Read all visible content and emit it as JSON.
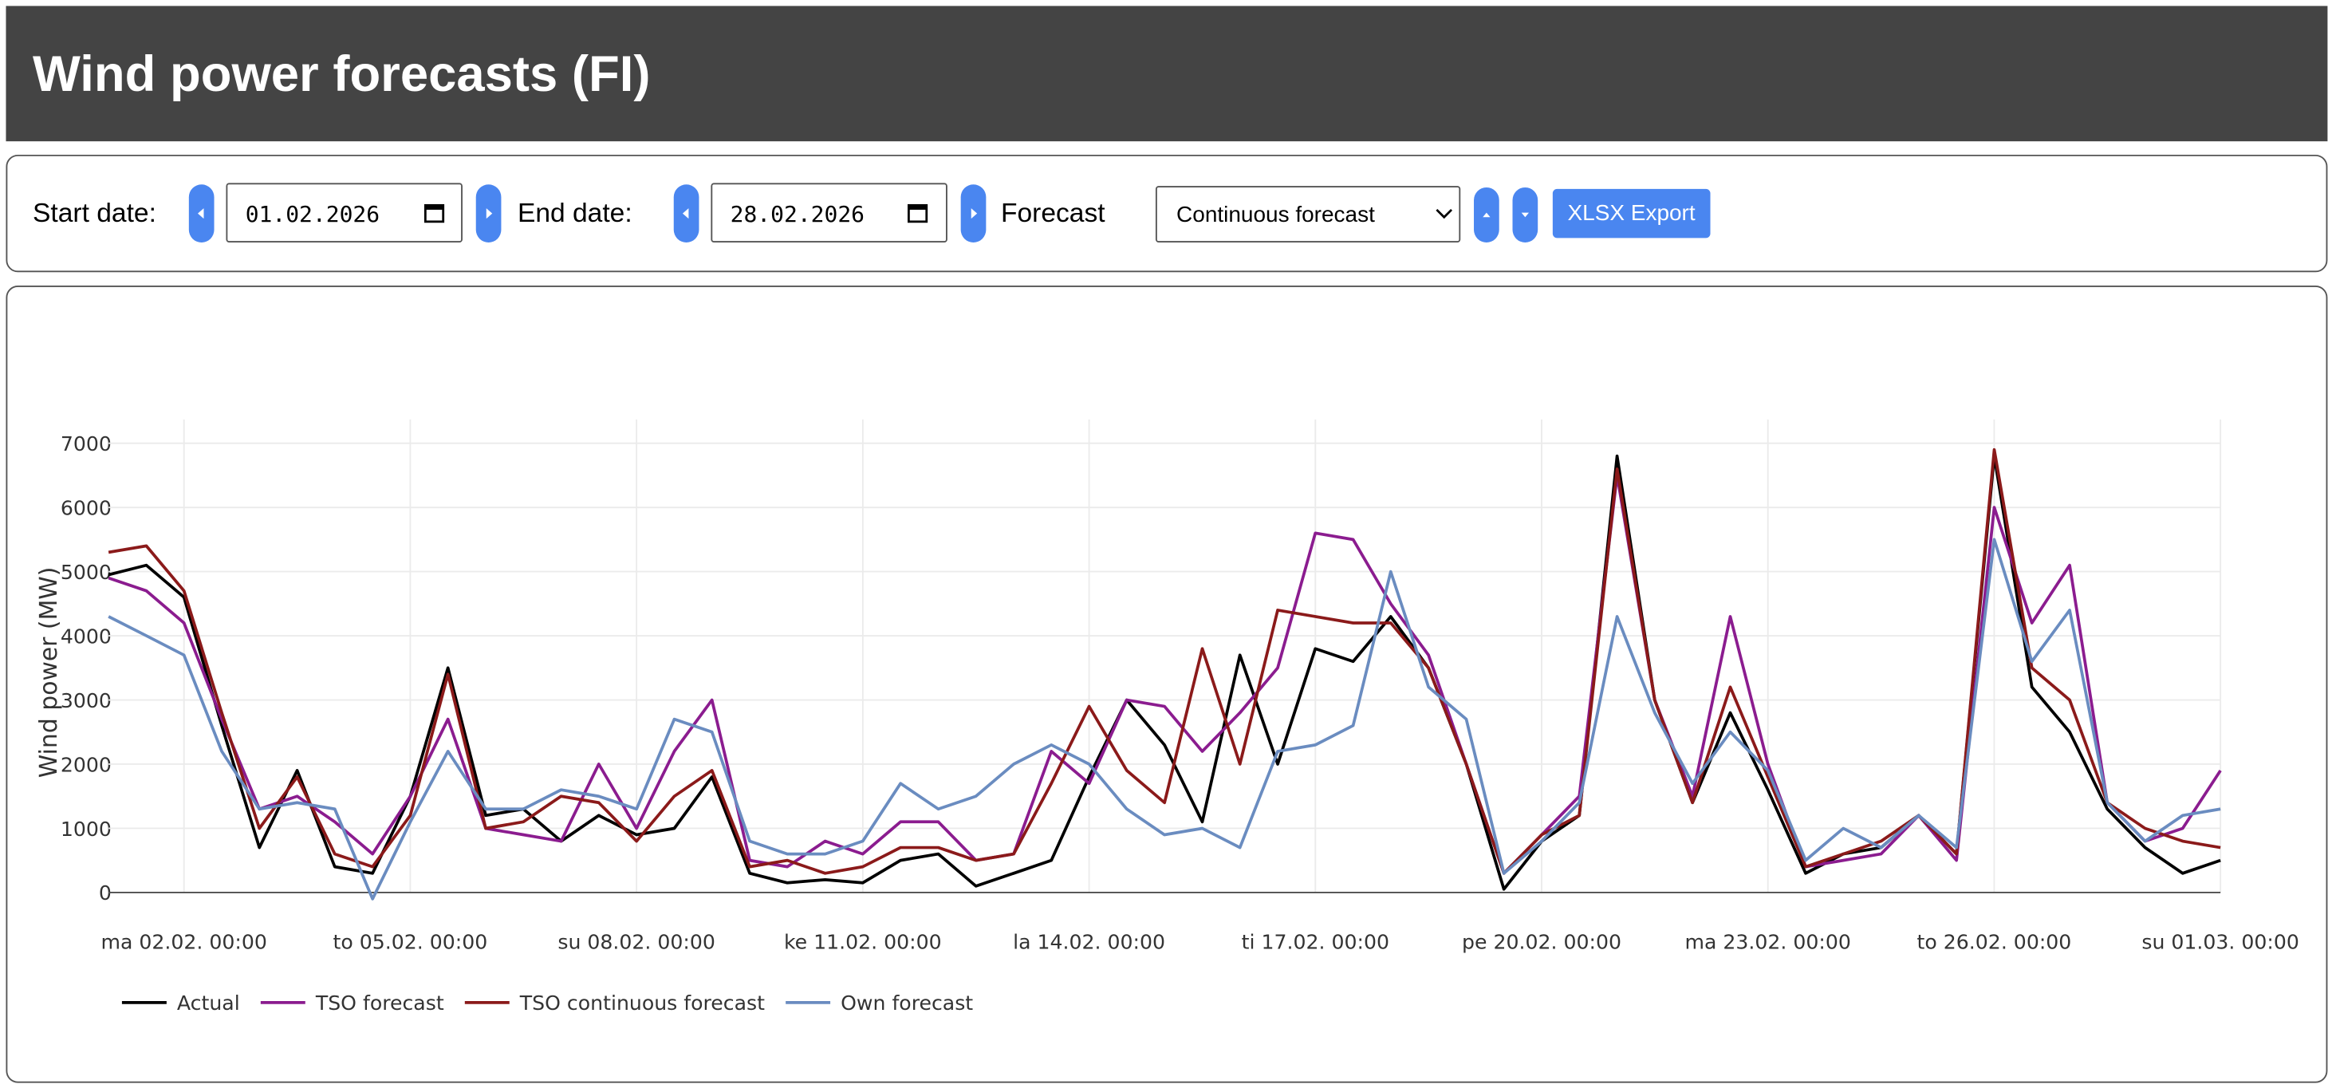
{
  "header": {
    "title": "Wind power forecasts (FI)"
  },
  "controls": {
    "start_label": "Start date:",
    "start_value": "01.02.2026",
    "end_label": "End date:",
    "end_value": "28.02.2026",
    "forecast_label": "Forecast",
    "forecast_value": "Continuous forecast",
    "export_button": "XLSX Export"
  },
  "chart_data": {
    "type": "line",
    "y_label": "Wind power (MW)",
    "x": [
      "01.02. 00:00",
      "01.02. 12:00",
      "02.02. 00:00",
      "02.02. 12:00",
      "03.02. 00:00",
      "03.02. 12:00",
      "04.02. 00:00",
      "04.02. 12:00",
      "05.02. 00:00",
      "05.02. 12:00",
      "06.02. 00:00",
      "06.02. 12:00",
      "07.02. 00:00",
      "07.02. 12:00",
      "08.02. 00:00",
      "08.02. 12:00",
      "09.02. 00:00",
      "09.02. 12:00",
      "10.02. 00:00",
      "10.02. 12:00",
      "11.02. 00:00",
      "11.02. 12:00",
      "12.02. 00:00",
      "12.02. 12:00",
      "13.02. 00:00",
      "13.02. 12:00",
      "14.02. 00:00",
      "14.02. 12:00",
      "15.02. 00:00",
      "15.02. 12:00",
      "16.02. 00:00",
      "16.02. 12:00",
      "17.02. 00:00",
      "17.02. 12:00",
      "18.02. 00:00",
      "18.02. 12:00",
      "19.02. 00:00",
      "19.02. 12:00",
      "20.02. 00:00",
      "20.02. 12:00",
      "21.02. 00:00",
      "21.02. 12:00",
      "22.02. 00:00",
      "22.02. 12:00",
      "23.02. 00:00",
      "23.02. 12:00",
      "24.02. 00:00",
      "24.02. 12:00",
      "25.02. 00:00",
      "25.02. 12:00",
      "26.02. 00:00",
      "26.02. 12:00",
      "27.02. 00:00",
      "27.02. 12:00",
      "28.02. 00:00",
      "28.02. 12:00",
      "01.03. 00:00"
    ],
    "xlim": [
      "01.02. 00:00",
      "01.03. 00:00"
    ],
    "xticks": [
      {
        "value": "02.02. 00:00",
        "label": "ma 02.02. 00:00"
      },
      {
        "value": "05.02. 00:00",
        "label": "to 05.02. 00:00"
      },
      {
        "value": "08.02. 00:00",
        "label": "su 08.02. 00:00"
      },
      {
        "value": "11.02. 00:00",
        "label": "ke 11.02. 00:00"
      },
      {
        "value": "14.02. 00:00",
        "label": "la 14.02. 00:00"
      },
      {
        "value": "17.02. 00:00",
        "label": "ti 17.02. 00:00"
      },
      {
        "value": "20.02. 00:00",
        "label": "pe 20.02. 00:00"
      },
      {
        "value": "23.02. 00:00",
        "label": "ma 23.02. 00:00"
      },
      {
        "value": "26.02. 00:00",
        "label": "to 26.02. 00:00"
      },
      {
        "value": "01.03. 00:00",
        "label": "su 01.03. 00:00"
      }
    ],
    "ylim": [
      0,
      7000
    ],
    "yticks": [
      0,
      1000,
      2000,
      3000,
      4000,
      5000,
      6000,
      7000
    ],
    "grid": true,
    "legend": "bottom-left",
    "series": [
      {
        "name": "Actual",
        "color": "#000000",
        "values": [
          4950,
          5100,
          4600,
          2600,
          700,
          1900,
          400,
          300,
          1500,
          3500,
          1200,
          1300,
          800,
          1200,
          900,
          1000,
          1800,
          300,
          150,
          200,
          150,
          500,
          600,
          100,
          300,
          500,
          1800,
          3000,
          2300,
          1100,
          3700,
          2000,
          3800,
          3600,
          4300,
          3500,
          2000,
          50,
          800,
          1200,
          6800,
          3000,
          1400,
          2800,
          1600,
          300,
          600,
          700,
          1200,
          600,
          6800,
          3200,
          2500,
          1300,
          700,
          300,
          500
        ]
      },
      {
        "name": "TSO forecast",
        "color": "#8b1c8f",
        "values": [
          4900,
          4700,
          4200,
          2700,
          1300,
          1500,
          1100,
          600,
          1500,
          2700,
          1000,
          900,
          800,
          2000,
          1000,
          2200,
          3000,
          500,
          400,
          800,
          600,
          1100,
          1100,
          500,
          600,
          2200,
          1700,
          3000,
          2900,
          2200,
          2800,
          3500,
          5600,
          5500,
          4500,
          3700,
          2000,
          300,
          900,
          1500,
          6500,
          3000,
          1500,
          4300,
          2000,
          400,
          500,
          600,
          1200,
          500,
          6000,
          4200,
          5100,
          1400,
          800,
          1000,
          1900
        ]
      },
      {
        "name": "TSO continuous forecast",
        "color": "#8b1a1a",
        "values": [
          5300,
          5400,
          4700,
          2800,
          1000,
          1800,
          600,
          400,
          1200,
          3400,
          1000,
          1100,
          1500,
          1400,
          800,
          1500,
          1900,
          400,
          500,
          300,
          400,
          700,
          700,
          500,
          600,
          1700,
          2900,
          1900,
          1400,
          3800,
          2000,
          4400,
          4300,
          4200,
          4200,
          3500,
          2000,
          300,
          900,
          1200,
          6600,
          3000,
          1400,
          3200,
          1800,
          400,
          600,
          800,
          1200,
          600,
          6900,
          3500,
          3000,
          1400,
          1000,
          800,
          700
        ]
      },
      {
        "name": "Own forecast",
        "color": "#6a8cc0",
        "values": [
          4300,
          4000,
          3700,
          2200,
          1300,
          1400,
          1300,
          -100,
          1100,
          2200,
          1300,
          1300,
          1600,
          1500,
          1300,
          2700,
          2500,
          800,
          600,
          600,
          800,
          1700,
          1300,
          1500,
          2000,
          2300,
          2000,
          1300,
          900,
          1000,
          700,
          2200,
          2300,
          2600,
          5000,
          3200,
          2700,
          300,
          800,
          1400,
          4300,
          2800,
          1700,
          2500,
          1900,
          500,
          1000,
          700,
          1200,
          700,
          5500,
          3600,
          4400,
          1400,
          800,
          1200,
          1300
        ]
      }
    ]
  }
}
